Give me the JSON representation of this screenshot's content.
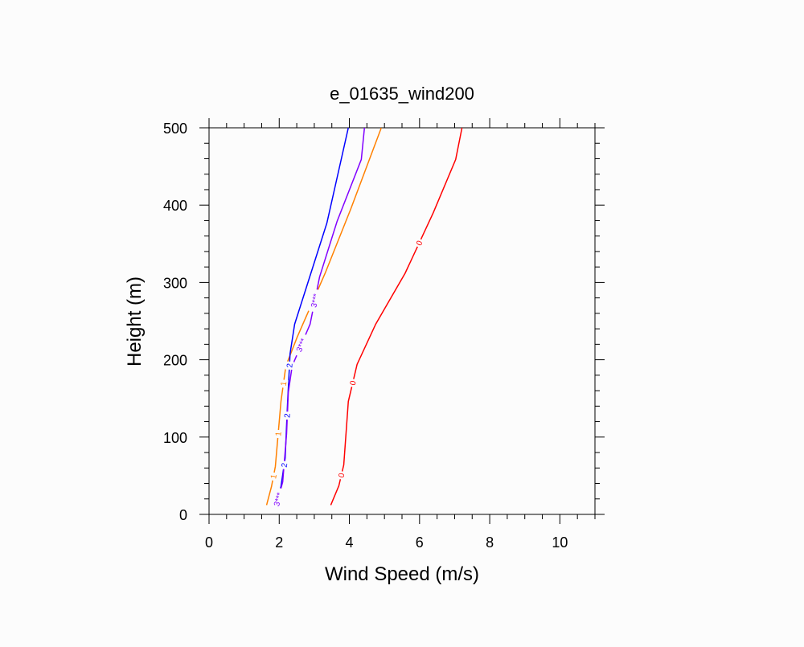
{
  "chart_data": {
    "type": "line",
    "title": "e_01635_wind200",
    "xlabel": "Wind Speed (m/s)",
    "ylabel": "Height (m)",
    "xlim": [
      0,
      11
    ],
    "ylim": [
      0,
      500
    ],
    "xticks": [
      0,
      2,
      4,
      6,
      8,
      10
    ],
    "yticks": [
      0,
      100,
      200,
      300,
      400,
      500
    ],
    "grid": false,
    "series": [
      {
        "name": "0",
        "color": "#ff0000",
        "x": [
          3.47,
          3.7,
          3.84,
          3.97,
          4.22,
          4.75,
          5.59,
          6.39,
          7.03,
          7.21
        ],
        "y": [
          12,
          37,
          64,
          146,
          194,
          246,
          312,
          390,
          459,
          500
        ],
        "label_at": [
          1,
          3,
          6
        ]
      },
      {
        "name": "1",
        "color": "#ff8000",
        "x": [
          1.64,
          1.78,
          1.89,
          2.05,
          2.19,
          2.51,
          3.31,
          4.04,
          4.91
        ],
        "y": [
          12,
          36,
          62,
          146,
          192,
          229,
          312,
          395,
          500
        ],
        "label_at": [
          1,
          2,
          3
        ]
      },
      {
        "name": "2",
        "color": "#0000ff",
        "x": [
          1.89,
          2.05,
          2.17,
          2.24,
          2.31,
          2.44,
          3.36,
          3.97
        ],
        "y": [
          12,
          36,
          73,
          146,
          208,
          246,
          377,
          500
        ],
        "label_at": [
          1,
          2,
          3
        ]
      },
      {
        "name": "3***",
        "color": "#8000ff",
        "x": [
          1.92,
          2.1,
          2.21,
          2.26,
          2.37,
          2.88,
          3.15,
          3.65,
          4.34,
          4.43
        ],
        "y": [
          12,
          42,
          104,
          158,
          192,
          246,
          307,
          379,
          459,
          500
        ],
        "label_at": [
          1,
          2,
          3
        ]
      }
    ]
  }
}
